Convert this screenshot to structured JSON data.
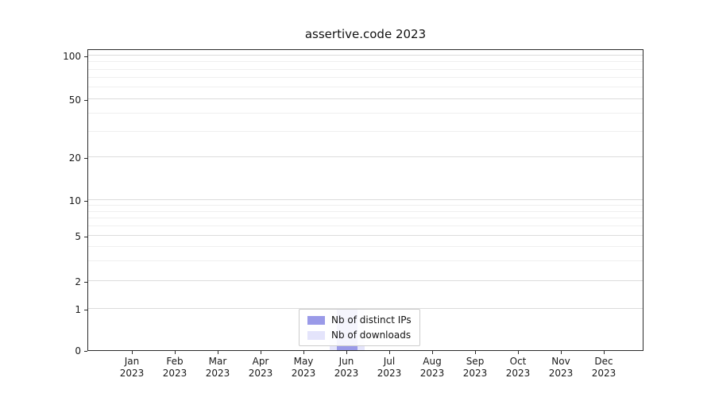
{
  "chart_data": {
    "type": "bar",
    "title": "assertive.code 2023",
    "yscale": "symlog",
    "ylim": [
      0,
      100
    ],
    "yticks": [
      0,
      1,
      2,
      5,
      10,
      20,
      50,
      100
    ],
    "grid": true,
    "legend_position": "lower center",
    "categories": [
      "Jan 2023",
      "Feb 2023",
      "Mar 2023",
      "Apr 2023",
      "May 2023",
      "Jun 2023",
      "Jul 2023",
      "Aug 2023",
      "Sep 2023",
      "Oct 2023",
      "Nov 2023",
      "Dec 2023"
    ],
    "series": [
      {
        "name": "Nb of downloads",
        "color": "#e4e4fb",
        "values": [
          0,
          0,
          0,
          0,
          0,
          1,
          0,
          0,
          0,
          0,
          0,
          0
        ]
      },
      {
        "name": "Nb of distinct IPs",
        "color": "#9a9ae8",
        "values": [
          0,
          0,
          0,
          0,
          0,
          1,
          0,
          0,
          0,
          0,
          0,
          0
        ]
      }
    ]
  },
  "legend": {
    "items": [
      {
        "label": "Nb of distinct IPs",
        "color": "#9a9ae8"
      },
      {
        "label": "Nb of downloads",
        "color": "#e4e4fb"
      }
    ]
  }
}
